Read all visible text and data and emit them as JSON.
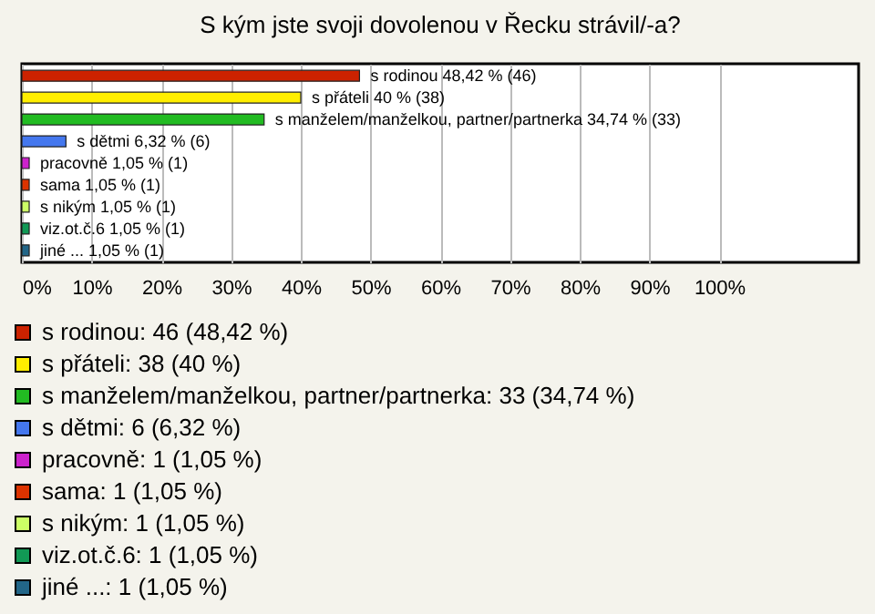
{
  "chart_data": {
    "type": "bar",
    "orientation": "horizontal",
    "title": "S kým jste svoji dovolenou v Řecku strávil/-a?",
    "categories": [
      "s rodinou",
      "s přáteli",
      "s manželem/manželkou, partner/partnerka",
      "s dětmi",
      "pracovně",
      "sama",
      "s nikým",
      "viz.ot.č.6",
      "jiné ..."
    ],
    "values": [
      48.42,
      40,
      34.74,
      6.32,
      1.05,
      1.05,
      1.05,
      1.05,
      1.05
    ],
    "value_labels": [
      "48,42 % (46)",
      "40 % (38)",
      "34,74 % (33)",
      "6,32 % (6)",
      "1,05 % (1)",
      "1,05 % (1)",
      "1,05 % (1)",
      "1,05 % (1)",
      "1,05 % (1)"
    ],
    "colors": [
      "#cc2200",
      "#ffee00",
      "#22bb22",
      "#4477ee",
      "#cc22cc",
      "#dd3300",
      "#ccff66",
      "#119955",
      "#226688"
    ],
    "xlim": [
      0,
      120
    ],
    "xticks": [
      {
        "value": 0,
        "label": "0%"
      },
      {
        "value": 10,
        "label": "10%"
      },
      {
        "value": 20,
        "label": "20%"
      },
      {
        "value": 30,
        "label": "30%"
      },
      {
        "value": 40,
        "label": "40%"
      },
      {
        "value": 50,
        "label": "50%"
      },
      {
        "value": 60,
        "label": "60%"
      },
      {
        "value": 70,
        "label": "70%"
      },
      {
        "value": 80,
        "label": "80%"
      },
      {
        "value": 90,
        "label": "90%"
      },
      {
        "value": 100,
        "label": "100%"
      }
    ],
    "grid": "x",
    "annotations": [
      "s rodinou: 46 (48,42 %)",
      "s přáteli: 38 (40 %)",
      "s manželem/manželkou, partner/partnerka: 33 (34,74 %)",
      "s dětmi: 6 (6,32 %)",
      "pracovně: 1 (1,05 %)",
      "sama: 1 (1,05 %)",
      "s nikým: 1 (1,05 %)",
      "viz.ot.č.6: 1 (1,05 %)",
      "jiné ...: 1 (1,05 %)"
    ]
  }
}
